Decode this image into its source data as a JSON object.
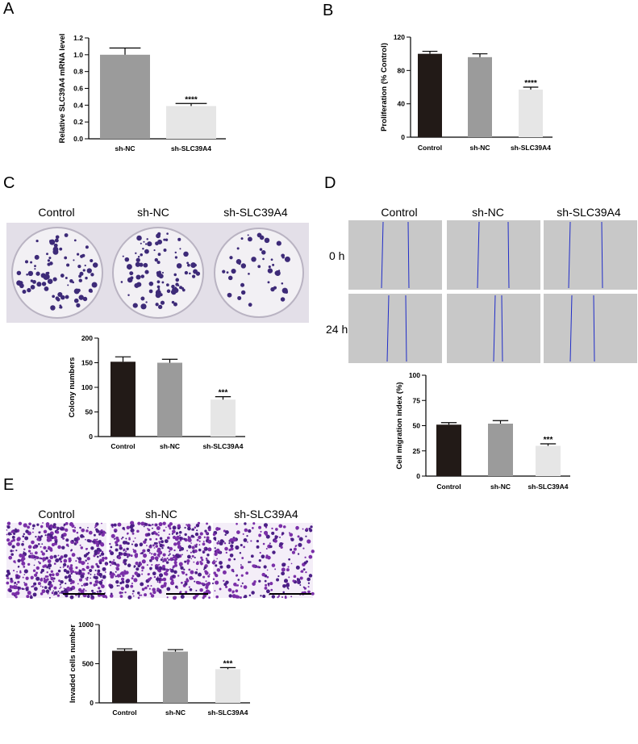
{
  "panels": {
    "A": "A",
    "B": "B",
    "C": "C",
    "D": "D",
    "E": "E"
  },
  "images": {
    "C": {
      "labels": [
        "Control",
        "sh-NC",
        "sh-SLC39A4"
      ]
    },
    "D": {
      "labels": [
        "Control",
        "sh-NC",
        "sh-SLC39A4"
      ],
      "rows": [
        "0 h",
        "24 h"
      ]
    },
    "E": {
      "labels": [
        "Control",
        "sh-NC",
        "sh-SLC39A4"
      ]
    }
  },
  "chart_data": [
    {
      "id": "A",
      "type": "bar",
      "categories": [
        "sh-NC",
        "sh-SLC39A4"
      ],
      "values": [
        1.0,
        0.39
      ],
      "errors": [
        0.08,
        0.03
      ],
      "significance": [
        "",
        "****"
      ],
      "colors": [
        "#9b9b9b",
        "#e6e6e6"
      ],
      "ylabel": "Relative SLC39A4 mRNA level",
      "ylim": [
        0,
        1.2
      ],
      "yticks": [
        "0.0",
        "0.2",
        "0.4",
        "0.6",
        "0.8",
        "1.0",
        "1.2"
      ]
    },
    {
      "id": "B",
      "type": "bar",
      "categories": [
        "Control",
        "sh-NC",
        "sh-SLC39A4"
      ],
      "values": [
        100,
        96,
        57
      ],
      "errors": [
        3,
        4,
        3
      ],
      "significance": [
        "",
        "",
        "****"
      ],
      "colors": [
        "#221a17",
        "#9b9b9b",
        "#e6e6e6"
      ],
      "ylabel": "Proliferation (% Control)",
      "ylim": [
        0,
        120
      ],
      "yticks": [
        "0",
        "40",
        "80",
        "120"
      ]
    },
    {
      "id": "C",
      "type": "bar",
      "categories": [
        "Control",
        "sh-NC",
        "sh-SLC39A4"
      ],
      "values": [
        152,
        150,
        75
      ],
      "errors": [
        10,
        7,
        6
      ],
      "significance": [
        "",
        "",
        "***"
      ],
      "colors": [
        "#221a17",
        "#9b9b9b",
        "#e6e6e6"
      ],
      "ylabel": "Colony numbers",
      "ylim": [
        0,
        200
      ],
      "yticks": [
        "0",
        "50",
        "100",
        "150",
        "200"
      ]
    },
    {
      "id": "D",
      "type": "bar",
      "categories": [
        "Control",
        "sh-NC",
        "sh-SLC39A4"
      ],
      "values": [
        51,
        52,
        30
      ],
      "errors": [
        2,
        3,
        2
      ],
      "significance": [
        "",
        "",
        "***"
      ],
      "colors": [
        "#221a17",
        "#9b9b9b",
        "#e6e6e6"
      ],
      "ylabel": "Cell migration index (%)",
      "ylim": [
        0,
        100
      ],
      "yticks": [
        "0",
        "25",
        "50",
        "75",
        "100"
      ]
    },
    {
      "id": "E",
      "type": "bar",
      "categories": [
        "Control",
        "sh-NC",
        "sh-SLC39A4"
      ],
      "values": [
        665,
        655,
        430
      ],
      "errors": [
        25,
        25,
        20
      ],
      "significance": [
        "",
        "",
        "***"
      ],
      "colors": [
        "#221a17",
        "#9b9b9b",
        "#e6e6e6"
      ],
      "ylabel": "Invaded cells number",
      "ylim": [
        0,
        1000
      ],
      "yticks": [
        "0",
        "500",
        "1000"
      ]
    }
  ]
}
